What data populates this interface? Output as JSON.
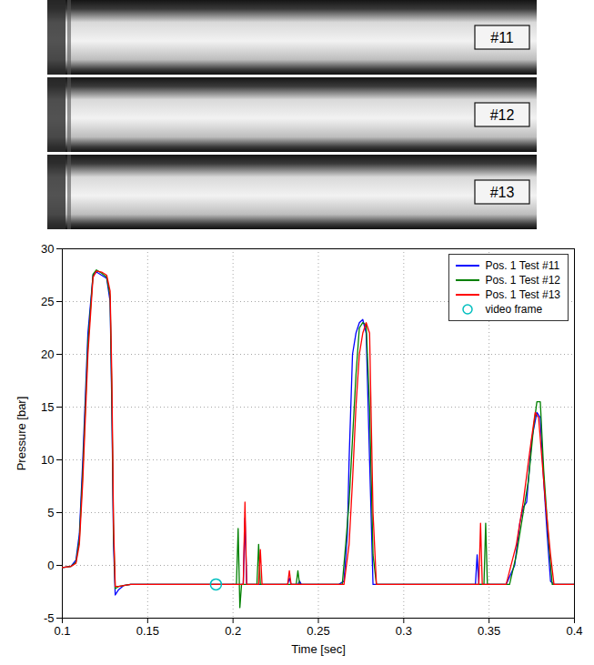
{
  "images": [
    "#11",
    "#12",
    "#13"
  ],
  "chart_data": {
    "type": "line",
    "xlabel": "Time [sec]",
    "ylabel": "Pressure [bar]",
    "xlim": [
      0.1,
      0.4
    ],
    "xticks": [
      0.1,
      0.15,
      0.2,
      0.25,
      0.3,
      0.35,
      0.4
    ],
    "ylim": [
      -5,
      30
    ],
    "yticks": [
      -5,
      0,
      5,
      10,
      15,
      20,
      25,
      30
    ],
    "grid": true,
    "legend": "upper right",
    "series": [
      {
        "name": "Pos. 1 Test #11",
        "color": "#0000ff",
        "type": "line",
        "x": [
          0.1,
          0.105,
          0.108,
          0.11,
          0.112,
          0.115,
          0.118,
          0.12,
          0.123,
          0.126,
          0.128,
          0.129,
          0.13,
          0.131,
          0.133,
          0.136,
          0.14,
          0.2,
          0.206,
          0.207,
          0.208,
          0.232,
          0.233,
          0.234,
          0.238,
          0.239,
          0.24,
          0.262,
          0.265,
          0.267,
          0.268,
          0.27,
          0.272,
          0.274,
          0.276,
          0.278,
          0.28,
          0.282,
          0.342,
          0.343,
          0.344,
          0.36,
          0.365,
          0.368,
          0.37,
          0.372,
          0.375,
          0.378,
          0.38,
          0.382,
          0.384,
          0.386,
          0.388,
          0.4
        ],
        "values": [
          -0.2,
          -0.1,
          0.5,
          3,
          10,
          22,
          27.5,
          27.8,
          27.5,
          27.2,
          25,
          15,
          2,
          -2.8,
          -2.3,
          -1.9,
          -1.8,
          -1.8,
          -1.8,
          4.5,
          -1.8,
          -1.8,
          -1.2,
          -1.8,
          -1.8,
          -1.5,
          -1.8,
          -1.8,
          -1.5,
          3,
          10,
          20,
          22,
          23,
          23.3,
          22,
          10,
          -1.8,
          -1.8,
          1,
          -1.8,
          -1.8,
          0,
          4,
          5.5,
          6,
          12,
          14.5,
          14,
          8,
          3,
          -1.5,
          -1.8,
          -1.8
        ]
      },
      {
        "name": "Pos. 1 Test #12",
        "color": "#008000",
        "type": "line",
        "x": [
          0.1,
          0.105,
          0.108,
          0.11,
          0.112,
          0.115,
          0.118,
          0.12,
          0.123,
          0.126,
          0.128,
          0.129,
          0.13,
          0.131,
          0.133,
          0.136,
          0.14,
          0.2,
          0.202,
          0.203,
          0.204,
          0.205,
          0.214,
          0.215,
          0.216,
          0.237,
          0.238,
          0.239,
          0.264,
          0.266,
          0.268,
          0.27,
          0.272,
          0.274,
          0.276,
          0.278,
          0.28,
          0.282,
          0.284,
          0.347,
          0.348,
          0.349,
          0.362,
          0.366,
          0.37,
          0.373,
          0.376,
          0.378,
          0.38,
          0.382,
          0.385,
          0.387,
          0.4
        ],
        "values": [
          -0.2,
          -0.1,
          0.3,
          2.5,
          9,
          21,
          27.6,
          28,
          27.7,
          27.3,
          25.5,
          16,
          3,
          -2.2,
          -2,
          -1.9,
          -1.8,
          -1.8,
          -1.8,
          3.5,
          -4,
          -1.8,
          -1.8,
          2,
          -1.8,
          -1.8,
          -0.5,
          -1.8,
          -1.8,
          2,
          6,
          12,
          18,
          22.5,
          23,
          22.8,
          15,
          1,
          -1.8,
          -1.8,
          4,
          -1.8,
          -1.8,
          1,
          5,
          8,
          13,
          15.5,
          15.5,
          9,
          2,
          -1.8,
          -1.8
        ]
      },
      {
        "name": "Pos. 1 Test #13",
        "color": "#ff0000",
        "type": "line",
        "x": [
          0.1,
          0.105,
          0.108,
          0.11,
          0.112,
          0.115,
          0.118,
          0.12,
          0.123,
          0.126,
          0.128,
          0.129,
          0.13,
          0.131,
          0.133,
          0.136,
          0.14,
          0.2,
          0.206,
          0.207,
          0.208,
          0.215,
          0.216,
          0.217,
          0.232,
          0.233,
          0.234,
          0.265,
          0.268,
          0.27,
          0.272,
          0.274,
          0.276,
          0.278,
          0.28,
          0.282,
          0.284,
          0.344,
          0.345,
          0.346,
          0.36,
          0.366,
          0.37,
          0.374,
          0.377,
          0.379,
          0.381,
          0.383,
          0.386,
          0.388,
          0.4
        ],
        "values": [
          -0.2,
          -0.1,
          0.2,
          2,
          8,
          20,
          27.3,
          27.9,
          27.8,
          27.5,
          26,
          18,
          4,
          -2,
          -2,
          -1.9,
          -1.8,
          -1.8,
          -1.8,
          6,
          -1.8,
          -1.8,
          1.5,
          -1.8,
          -1.8,
          -0.5,
          -1.8,
          -1.8,
          2,
          8,
          15,
          20,
          22,
          23,
          22,
          5,
          -1.8,
          -1.8,
          4,
          -1.8,
          -1.8,
          2,
          6,
          11,
          14.5,
          14,
          10,
          6,
          1,
          -1.8,
          -1.8
        ]
      },
      {
        "name": "video frame",
        "color": "#00bfbf",
        "type": "scatter",
        "marker": "circle",
        "x": [
          0.19
        ],
        "values": [
          -1.8
        ]
      }
    ]
  }
}
